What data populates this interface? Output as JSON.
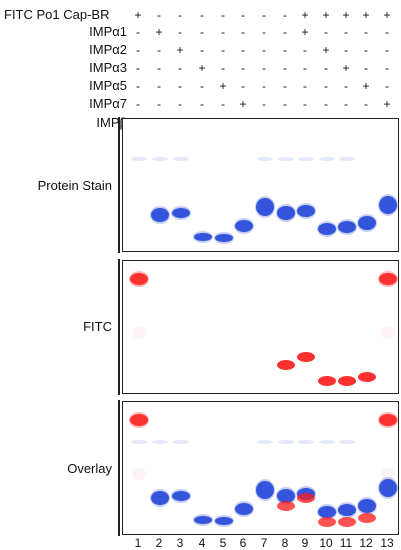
{
  "conditions": [
    {
      "label": "FITC Po1 Cap-BR",
      "marks": [
        "+",
        "-",
        "-",
        "-",
        "-",
        "-",
        "-",
        "-",
        "+",
        "+",
        "+",
        "+",
        "+"
      ]
    },
    {
      "label": "IMPα1",
      "marks": [
        "-",
        "+",
        "-",
        "-",
        "-",
        "-",
        "-",
        "-",
        "+",
        "-",
        "-",
        "-",
        "-"
      ]
    },
    {
      "label": "IMPα2",
      "marks": [
        "-",
        "-",
        "+",
        "-",
        "-",
        "-",
        "-",
        "-",
        "-",
        "+",
        "-",
        "-",
        "-"
      ]
    },
    {
      "label": "IMPα3",
      "marks": [
        "-",
        "-",
        "-",
        "+",
        "-",
        "-",
        "-",
        "-",
        "-",
        "-",
        "+",
        "-",
        "-"
      ]
    },
    {
      "label": "IMPα5",
      "marks": [
        "-",
        "-",
        "-",
        "-",
        "+",
        "-",
        "-",
        "-",
        "-",
        "-",
        "-",
        "+",
        "-"
      ]
    },
    {
      "label": "IMPα7",
      "marks": [
        "-",
        "-",
        "-",
        "-",
        "-",
        "+",
        "-",
        "-",
        "-",
        "-",
        "-",
        "-",
        "+"
      ]
    },
    {
      "label": "IMPβ",
      "marks": [
        "-",
        "-",
        "-",
        "-",
        "-",
        "-",
        "+",
        "-",
        "-",
        "-",
        "-",
        "-",
        "+"
      ]
    }
  ],
  "panels": [
    {
      "label": "Protein Stain"
    },
    {
      "label": "FITC"
    },
    {
      "label": "Overlay"
    }
  ],
  "lanes": [
    "1",
    "2",
    "3",
    "4",
    "5",
    "6",
    "7",
    "8",
    "9",
    "10",
    "11",
    "12",
    "13"
  ],
  "colors": {
    "protein": "#1a3fd6",
    "fitc": "#ff1a1a",
    "frame": "#222222"
  }
}
